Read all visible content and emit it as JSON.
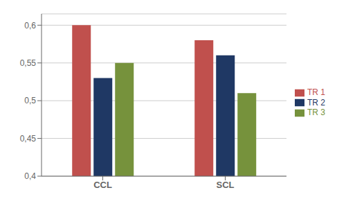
{
  "chart_data": {
    "type": "bar",
    "categories": [
      "CCL",
      "SCL"
    ],
    "series": [
      {
        "name": "TR 1",
        "color": "#c0504d",
        "values": [
          0.6,
          0.58
        ]
      },
      {
        "name": "TR 2",
        "color": "#1f3864",
        "values": [
          0.53,
          0.56
        ]
      },
      {
        "name": "TR 3",
        "color": "#76923c",
        "values": [
          0.55,
          0.51
        ]
      }
    ],
    "ylim": [
      0.4,
      0.615
    ],
    "yticks": [
      {
        "value": 0.4,
        "label": "0,4"
      },
      {
        "value": 0.45,
        "label": "0,45"
      },
      {
        "value": 0.5,
        "label": "0,5"
      },
      {
        "value": 0.55,
        "label": "0,55"
      },
      {
        "value": 0.6,
        "label": "0,6"
      }
    ],
    "grid": true,
    "legend": "right"
  }
}
